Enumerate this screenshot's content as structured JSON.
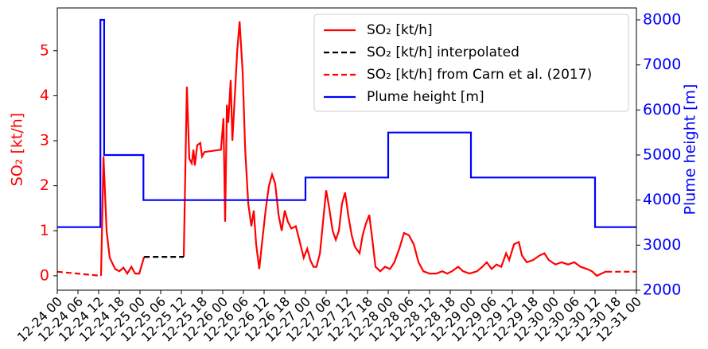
{
  "chart_data": {
    "type": "line",
    "ylabel": "SO₂ [kt/h]",
    "y2label": "Plume height [m]",
    "xlim": [
      0,
      168
    ],
    "ylim": [
      -0.32,
      5.95
    ],
    "y2lim": [
      2000,
      8265
    ],
    "xticks": [
      {
        "value": 0,
        "label": "12-24 00"
      },
      {
        "value": 6,
        "label": "12-24 06"
      },
      {
        "value": 12,
        "label": "12-24 12"
      },
      {
        "value": 18,
        "label": "12-24 18"
      },
      {
        "value": 24,
        "label": "12-25 00"
      },
      {
        "value": 30,
        "label": "12-25 06"
      },
      {
        "value": 36,
        "label": "12-25 12"
      },
      {
        "value": 42,
        "label": "12-25 18"
      },
      {
        "value": 48,
        "label": "12-26 00"
      },
      {
        "value": 54,
        "label": "12-26 06"
      },
      {
        "value": 60,
        "label": "12-26 12"
      },
      {
        "value": 66,
        "label": "12-26 18"
      },
      {
        "value": 72,
        "label": "12-27 00"
      },
      {
        "value": 78,
        "label": "12-27 06"
      },
      {
        "value": 84,
        "label": "12-27 12"
      },
      {
        "value": 90,
        "label": "12-27 18"
      },
      {
        "value": 96,
        "label": "12-28 00"
      },
      {
        "value": 102,
        "label": "12-28 06"
      },
      {
        "value": 108,
        "label": "12-28 12"
      },
      {
        "value": 114,
        "label": "12-28 18"
      },
      {
        "value": 120,
        "label": "12-29 00"
      },
      {
        "value": 126,
        "label": "12-29 06"
      },
      {
        "value": 132,
        "label": "12-29 12"
      },
      {
        "value": 138,
        "label": "12-29 18"
      },
      {
        "value": 144,
        "label": "12-30 00"
      },
      {
        "value": 150,
        "label": "12-30 06"
      },
      {
        "value": 156,
        "label": "12-30 12"
      },
      {
        "value": 162,
        "label": "12-30 18"
      },
      {
        "value": 168,
        "label": "12-31 00"
      }
    ],
    "yticks": [
      0,
      1,
      2,
      3,
      4,
      5
    ],
    "y2ticks": [
      2000,
      3000,
      4000,
      5000,
      6000,
      7000,
      8000
    ],
    "legend": "upper right",
    "series": [
      {
        "name": "SO₂ [kt/h]",
        "color": "#ff0000",
        "linestyle": "solid",
        "x": [
          12.7,
          13.4,
          14.3,
          15.2,
          16.8,
          18,
          19.2,
          20.3,
          21.5,
          22.6,
          23.8,
          25.2,
          30,
          36.7,
          37.6,
          38.3,
          39,
          39.5,
          39.9,
          40.6,
          41.5,
          42,
          42.7,
          47.5,
          48.2,
          48.7,
          49.2,
          49.6,
          50.3,
          50.8,
          51.5,
          52.2,
          52.9,
          53.8,
          54.5,
          55.4,
          56.3,
          57,
          57.7,
          58.6,
          59.5,
          60.5,
          61.4,
          62.3,
          63.2,
          64.2,
          65.1,
          66,
          66.9,
          67.9,
          69.2,
          70.2,
          71.5,
          72.5,
          73.4,
          74.3,
          75.2,
          76.2,
          77.1,
          78,
          78.9,
          79.9,
          80.8,
          81.7,
          82.6,
          83.5,
          84.5,
          85.4,
          86.3,
          87.7,
          88.6,
          89.5,
          90.5,
          91.4,
          92.3,
          93.7,
          95.1,
          96.5,
          97.8,
          99.2,
          100.6,
          102,
          103.4,
          104.8,
          106.2,
          108,
          109.9,
          111.7,
          113.1,
          114.5,
          116.3,
          117.7,
          119.6,
          121.8,
          123.3,
          124.6,
          126,
          127.4,
          128.8,
          130.2,
          131.1,
          132.5,
          133.9,
          134.8,
          136.2,
          138,
          139.9,
          141.3,
          142.6,
          144.5,
          146.3,
          148.2,
          150,
          151.8,
          153.7,
          155.1,
          156.5,
          157.9,
          159.3
        ],
        "values": [
          0,
          2.65,
          1.0,
          0.4,
          0.15,
          0.1,
          0.18,
          0.05,
          0.2,
          0.05,
          0.05,
          0.42,
          null,
          0.42,
          4.2,
          2.6,
          2.5,
          2.8,
          2.45,
          2.9,
          2.95,
          2.65,
          2.75,
          2.8,
          3.5,
          1.2,
          3.8,
          3.4,
          4.35,
          3.0,
          4.0,
          5.0,
          5.65,
          4.5,
          2.8,
          1.6,
          1.1,
          1.45,
          0.7,
          0.15,
          0.8,
          1.5,
          2.0,
          2.25,
          2.05,
          1.35,
          1.0,
          1.45,
          1.2,
          1.05,
          1.1,
          0.8,
          0.4,
          0.6,
          0.35,
          0.2,
          0.2,
          0.5,
          1.2,
          1.9,
          1.5,
          1.0,
          0.8,
          1.0,
          1.6,
          1.85,
          1.3,
          0.9,
          0.65,
          0.5,
          0.9,
          1.15,
          1.35,
          0.8,
          0.2,
          0.1,
          0.2,
          0.15,
          0.3,
          0.6,
          0.95,
          0.9,
          0.7,
          0.3,
          0.1,
          0.05,
          0.05,
          0.1,
          0.05,
          0.1,
          0.2,
          0.1,
          0.05,
          0.1,
          0.2,
          0.3,
          0.15,
          0.25,
          0.2,
          0.5,
          0.35,
          0.7,
          0.75,
          0.45,
          0.3,
          0.35,
          0.45,
          0.5,
          0.35,
          0.25,
          0.3,
          0.25,
          0.3,
          0.2,
          0.15,
          0.1,
          0,
          0.05,
          0.1
        ]
      },
      {
        "name": "SO₂ [kt/h] interpolated",
        "color": "#000000",
        "linestyle": "dashed",
        "x": [
          25.2,
          36.7
        ],
        "values": [
          0.42,
          0.42
        ]
      },
      {
        "name": "SO₂ [kt/h] from Carn et al. (2017)",
        "color": "#ff0000",
        "linestyle": "dashed",
        "x": [
          0,
          12.7,
          null,
          159.3,
          168
        ],
        "values": [
          0.09,
          0,
          null,
          0.09,
          0.09
        ]
      },
      {
        "name": "Plume height [m]",
        "color": "#0000ff",
        "linestyle": "solid",
        "axis": "y2",
        "x": [
          0,
          12.5,
          12.5,
          13.6,
          13.6,
          25,
          25,
          72,
          72,
          96,
          96,
          120,
          120,
          156,
          156,
          168
        ],
        "values": [
          3400,
          3400,
          8000,
          8000,
          5000,
          5000,
          4000,
          4000,
          4500,
          4500,
          5500,
          5500,
          4500,
          4500,
          3400,
          3400
        ]
      }
    ]
  }
}
